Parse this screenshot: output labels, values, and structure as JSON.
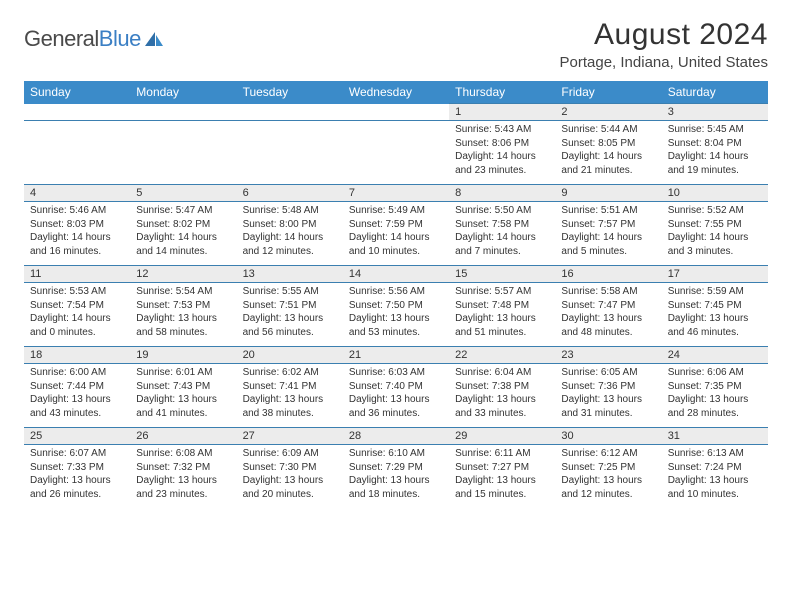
{
  "logo": {
    "textGray": "General",
    "textBlue": "Blue"
  },
  "title": "August 2024",
  "location": "Portage, Indiana, United States",
  "colors": {
    "headerBg": "#3b8bc9",
    "divider": "#3b7fb0",
    "dayBg": "#ececec",
    "logoBlue": "#3b7fc4"
  },
  "dayHeaders": [
    "Sunday",
    "Monday",
    "Tuesday",
    "Wednesday",
    "Thursday",
    "Friday",
    "Saturday"
  ],
  "weeks": [
    [
      null,
      null,
      null,
      null,
      {
        "n": "1",
        "sr": "5:43 AM",
        "ss": "8:06 PM",
        "dl": "14 hours and 23 minutes."
      },
      {
        "n": "2",
        "sr": "5:44 AM",
        "ss": "8:05 PM",
        "dl": "14 hours and 21 minutes."
      },
      {
        "n": "3",
        "sr": "5:45 AM",
        "ss": "8:04 PM",
        "dl": "14 hours and 19 minutes."
      }
    ],
    [
      {
        "n": "4",
        "sr": "5:46 AM",
        "ss": "8:03 PM",
        "dl": "14 hours and 16 minutes."
      },
      {
        "n": "5",
        "sr": "5:47 AM",
        "ss": "8:02 PM",
        "dl": "14 hours and 14 minutes."
      },
      {
        "n": "6",
        "sr": "5:48 AM",
        "ss": "8:00 PM",
        "dl": "14 hours and 12 minutes."
      },
      {
        "n": "7",
        "sr": "5:49 AM",
        "ss": "7:59 PM",
        "dl": "14 hours and 10 minutes."
      },
      {
        "n": "8",
        "sr": "5:50 AM",
        "ss": "7:58 PM",
        "dl": "14 hours and 7 minutes."
      },
      {
        "n": "9",
        "sr": "5:51 AM",
        "ss": "7:57 PM",
        "dl": "14 hours and 5 minutes."
      },
      {
        "n": "10",
        "sr": "5:52 AM",
        "ss": "7:55 PM",
        "dl": "14 hours and 3 minutes."
      }
    ],
    [
      {
        "n": "11",
        "sr": "5:53 AM",
        "ss": "7:54 PM",
        "dl": "14 hours and 0 minutes."
      },
      {
        "n": "12",
        "sr": "5:54 AM",
        "ss": "7:53 PM",
        "dl": "13 hours and 58 minutes."
      },
      {
        "n": "13",
        "sr": "5:55 AM",
        "ss": "7:51 PM",
        "dl": "13 hours and 56 minutes."
      },
      {
        "n": "14",
        "sr": "5:56 AM",
        "ss": "7:50 PM",
        "dl": "13 hours and 53 minutes."
      },
      {
        "n": "15",
        "sr": "5:57 AM",
        "ss": "7:48 PM",
        "dl": "13 hours and 51 minutes."
      },
      {
        "n": "16",
        "sr": "5:58 AM",
        "ss": "7:47 PM",
        "dl": "13 hours and 48 minutes."
      },
      {
        "n": "17",
        "sr": "5:59 AM",
        "ss": "7:45 PM",
        "dl": "13 hours and 46 minutes."
      }
    ],
    [
      {
        "n": "18",
        "sr": "6:00 AM",
        "ss": "7:44 PM",
        "dl": "13 hours and 43 minutes."
      },
      {
        "n": "19",
        "sr": "6:01 AM",
        "ss": "7:43 PM",
        "dl": "13 hours and 41 minutes."
      },
      {
        "n": "20",
        "sr": "6:02 AM",
        "ss": "7:41 PM",
        "dl": "13 hours and 38 minutes."
      },
      {
        "n": "21",
        "sr": "6:03 AM",
        "ss": "7:40 PM",
        "dl": "13 hours and 36 minutes."
      },
      {
        "n": "22",
        "sr": "6:04 AM",
        "ss": "7:38 PM",
        "dl": "13 hours and 33 minutes."
      },
      {
        "n": "23",
        "sr": "6:05 AM",
        "ss": "7:36 PM",
        "dl": "13 hours and 31 minutes."
      },
      {
        "n": "24",
        "sr": "6:06 AM",
        "ss": "7:35 PM",
        "dl": "13 hours and 28 minutes."
      }
    ],
    [
      {
        "n": "25",
        "sr": "6:07 AM",
        "ss": "7:33 PM",
        "dl": "13 hours and 26 minutes."
      },
      {
        "n": "26",
        "sr": "6:08 AM",
        "ss": "7:32 PM",
        "dl": "13 hours and 23 minutes."
      },
      {
        "n": "27",
        "sr": "6:09 AM",
        "ss": "7:30 PM",
        "dl": "13 hours and 20 minutes."
      },
      {
        "n": "28",
        "sr": "6:10 AM",
        "ss": "7:29 PM",
        "dl": "13 hours and 18 minutes."
      },
      {
        "n": "29",
        "sr": "6:11 AM",
        "ss": "7:27 PM",
        "dl": "13 hours and 15 minutes."
      },
      {
        "n": "30",
        "sr": "6:12 AM",
        "ss": "7:25 PM",
        "dl": "13 hours and 12 minutes."
      },
      {
        "n": "31",
        "sr": "6:13 AM",
        "ss": "7:24 PM",
        "dl": "13 hours and 10 minutes."
      }
    ]
  ],
  "labels": {
    "sunrise": "Sunrise:",
    "sunset": "Sunset:",
    "daylight": "Daylight:"
  }
}
